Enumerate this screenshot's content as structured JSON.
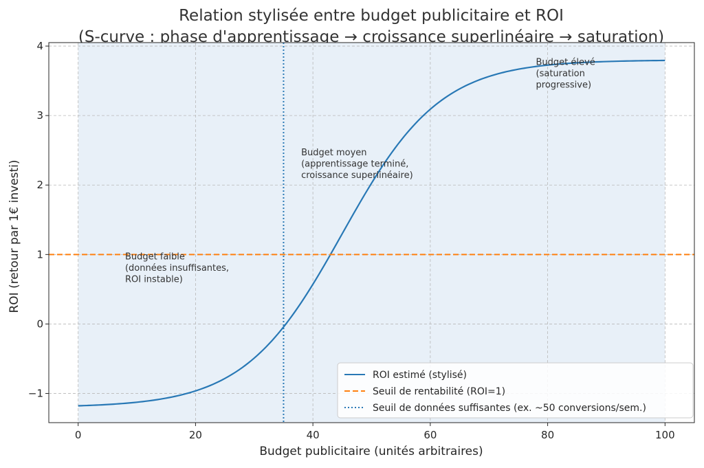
{
  "chart_data": {
    "type": "line",
    "title_lines": [
      "Relation stylisée entre budget publicitaire et ROI",
      "(S-curve : phase d'apprentissage → croissance superlinéaire → saturation)"
    ],
    "xlabel": "Budget publicitaire (unités arbitraires)",
    "ylabel": "ROI (retour par 1€ investi)",
    "xlim": [
      -5,
      105
    ],
    "ylim": [
      -1.42,
      4.05
    ],
    "xticks": [
      0,
      20,
      40,
      60,
      80,
      100
    ],
    "yticks": [
      -1,
      0,
      1,
      2,
      3,
      4
    ],
    "xtick_labels": [
      "0",
      "20",
      "40",
      "60",
      "80",
      "100"
    ],
    "ytick_labels": [
      "−1",
      "0",
      "1",
      "2",
      "3",
      "4"
    ],
    "grid": true,
    "shaded_region": {
      "x": [
        0,
        100
      ],
      "color": "#e8f0f8"
    },
    "series": [
      {
        "name": "ROI estimé (stylisé)",
        "style": "solid",
        "color": "#2878b5",
        "model": {
          "type": "logistic",
          "lower": -1.2,
          "upper": 3.8,
          "midpoint": 45,
          "steepness": 0.12
        },
        "x_range": [
          0,
          100
        ]
      },
      {
        "name": "Seuil de rentabilité (ROI=1)",
        "style": "dashed",
        "color": "#ff7f0e",
        "y": 1
      },
      {
        "name": "Seuil de données suffisantes (ex. ~50 conversions/sem.)",
        "style": "dotted",
        "color": "#2878b5",
        "x": 35
      }
    ],
    "annotations": [
      {
        "x": 8,
        "y": 0.93,
        "lines": [
          "Budget faible",
          "(données insuffisantes,",
          "ROI instable)"
        ]
      },
      {
        "x": 38,
        "y": 2.43,
        "lines": [
          "Budget moyen",
          "(apprentissage terminé,",
          "croissance superlinéaire)"
        ]
      },
      {
        "x": 78,
        "y": 3.73,
        "lines": [
          "Budget élevé",
          "(saturation",
          "progressive)"
        ]
      }
    ],
    "legend_position": "lower-right"
  }
}
